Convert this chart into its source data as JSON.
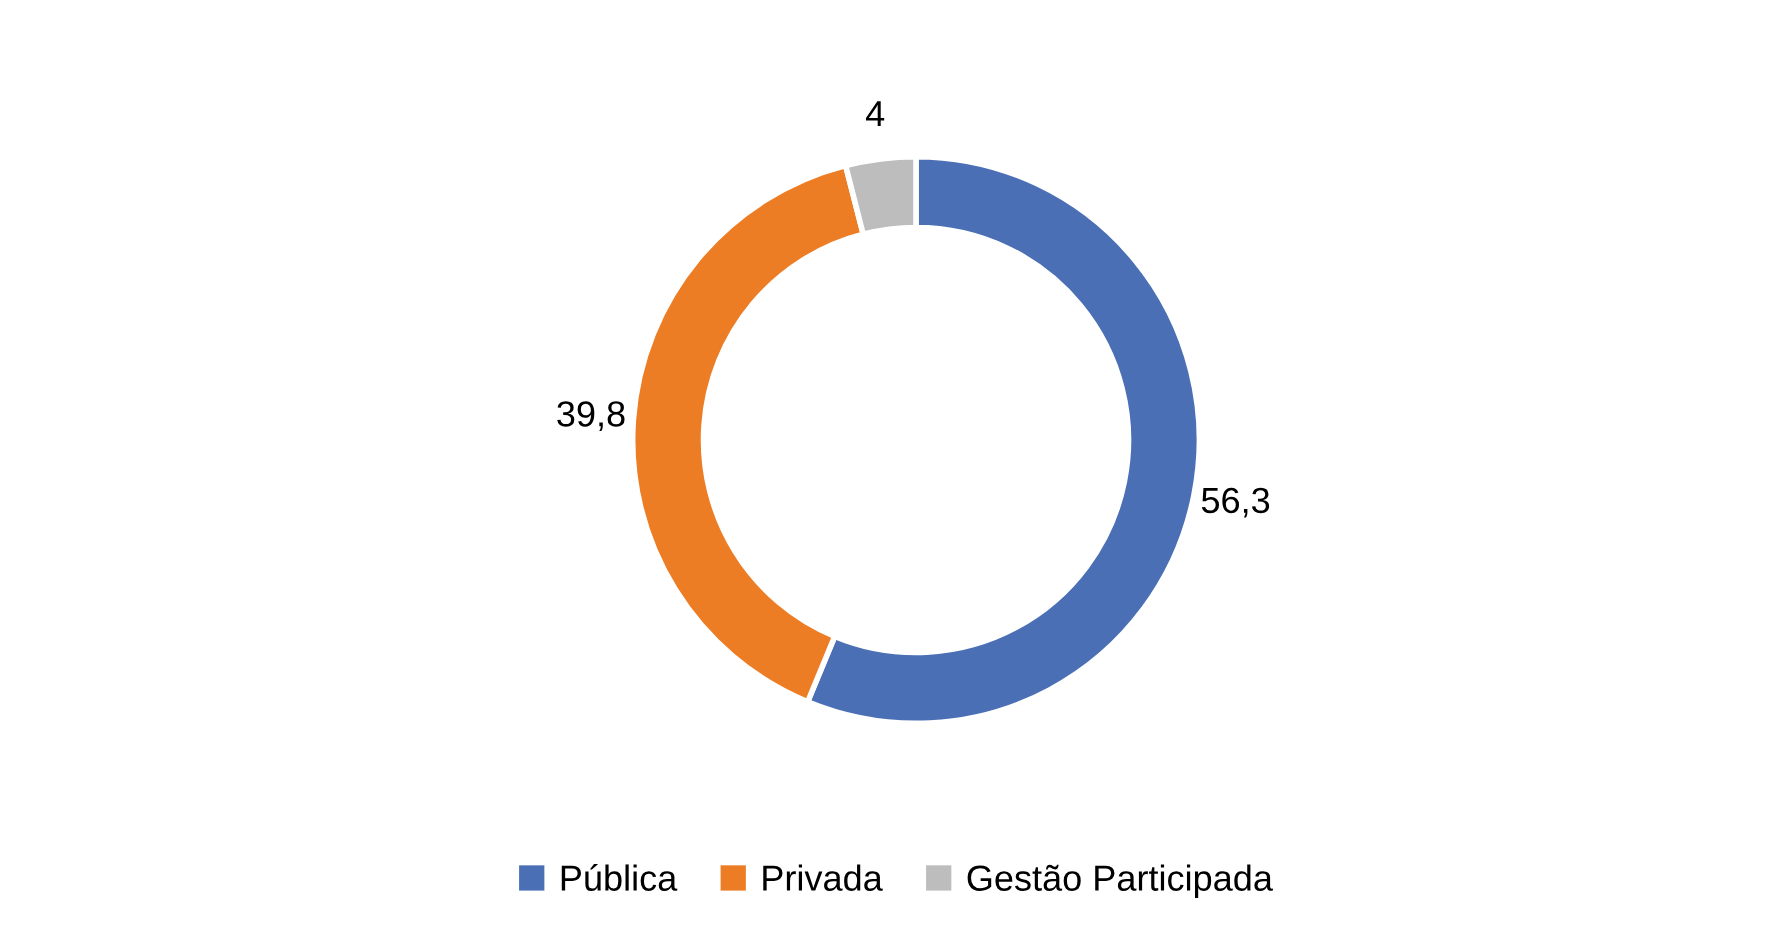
{
  "chart_data": {
    "type": "donut",
    "categories": [
      "Pública",
      "Privada",
      "Gestão Participada"
    ],
    "values": [
      56.3,
      39.8,
      4
    ],
    "colors": [
      "#4a6fb5",
      "#ed7d25",
      "#bdbdbd"
    ],
    "value_labels": [
      "56,3",
      "39,8",
      "4"
    ],
    "legend": "bottom"
  }
}
